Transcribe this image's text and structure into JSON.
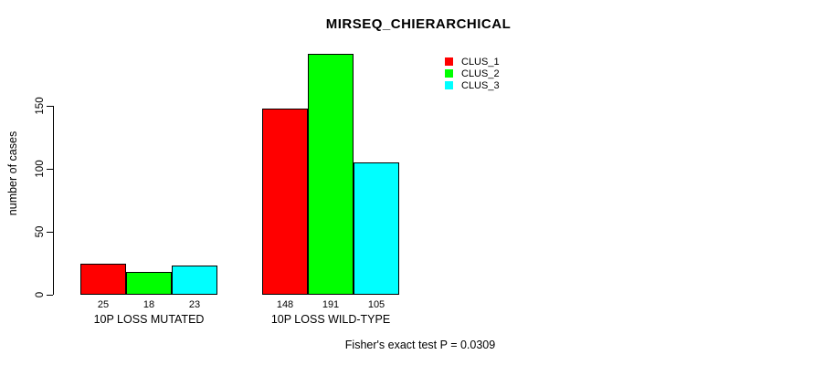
{
  "chart_data": {
    "type": "bar",
    "title": "MIRSEQ_CHIERARCHICAL",
    "ylabel": "number of cases",
    "xlabel": "",
    "categories": [
      "10P LOSS MUTATED",
      "10P LOSS WILD-TYPE"
    ],
    "series": [
      {
        "name": "CLUS_1",
        "color": "#FF0000",
        "values": [
          25,
          148
        ]
      },
      {
        "name": "CLUS_2",
        "color": "#00FF00",
        "values": [
          18,
          191
        ]
      },
      {
        "name": "CLUS_3",
        "color": "#00FFFF",
        "values": [
          23,
          105
        ]
      }
    ],
    "value_labels": [
      [
        25,
        18,
        23
      ],
      [
        148,
        191,
        105
      ]
    ],
    "yticks": [
      0,
      50,
      100,
      150
    ],
    "ylim": [
      0,
      150
    ],
    "grid": false,
    "legend_position": "top-right"
  },
  "footnote": "Fisher's exact test P = 0.0309"
}
